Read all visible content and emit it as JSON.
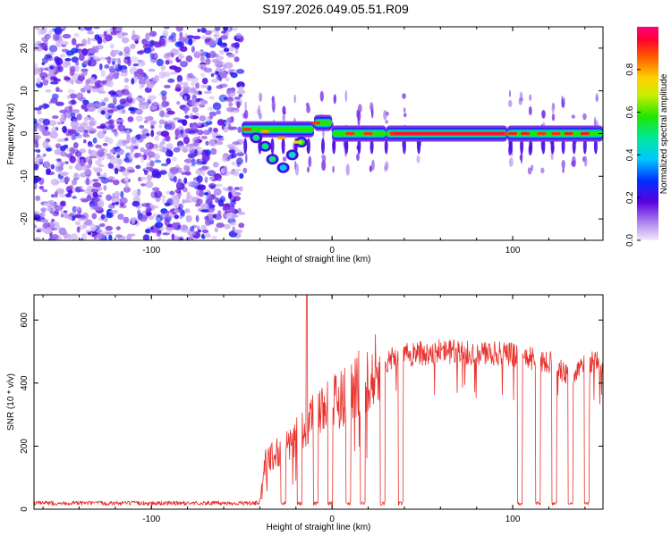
{
  "title": "S197.2026.049.05.51.R09",
  "chart_data": [
    {
      "type": "heatmap",
      "xlabel": "Height of straight line (km)",
      "ylabel": "Frequency (Hz)",
      "xlim": [
        -165,
        150
      ],
      "ylim": [
        -25,
        25
      ],
      "x_ticks": [
        -100,
        0,
        100
      ],
      "y_ticks": [
        -20,
        -10,
        0,
        10,
        20
      ],
      "x_tick_labels": [
        "-100",
        "0",
        "100"
      ],
      "y_tick_labels": [
        "-20",
        "-10",
        "0",
        "10",
        "20"
      ],
      "noise_region_x": [
        -165,
        -50
      ],
      "signal_segments": [
        {
          "x0": -50,
          "x1": -10,
          "freq": 1.0,
          "amp": 0.85
        },
        {
          "x0": -10,
          "x1": 0,
          "freq": 2.5,
          "amp": 0.9
        },
        {
          "x0": 0,
          "x1": 30,
          "freq": 0.0,
          "amp": 0.9
        },
        {
          "x0": 30,
          "x1": 97,
          "freq": 0.0,
          "amp": 0.97
        },
        {
          "x0": 97,
          "x1": 150,
          "freq": 0.0,
          "amp": 0.9
        }
      ],
      "colorbar": {
        "label": "Normalized spectral amplitude",
        "range": [
          0,
          1
        ],
        "ticks": [
          0.0,
          0.2,
          0.4,
          0.6,
          0.8
        ],
        "tick_labels": [
          "0.0",
          "0.2",
          "0.4",
          "0.6",
          "0.8"
        ]
      }
    },
    {
      "type": "line",
      "xlabel": "Height of straight line (km)",
      "ylabel": "SNR (10 * v/v)",
      "xlim": [
        -165,
        150
      ],
      "ylim": [
        0,
        680
      ],
      "x_ticks": [
        -100,
        0,
        100
      ],
      "y_ticks": [
        0,
        200,
        400,
        600
      ],
      "x_tick_labels": [
        "-100",
        "0",
        "100"
      ],
      "y_tick_labels": [
        "0",
        "200",
        "400",
        "600"
      ],
      "series": [
        {
          "name": "SNR",
          "color": "#e8302a",
          "profile": [
            [
              -165,
              20
            ],
            [
              -40,
              20
            ],
            [
              -37,
              150
            ],
            [
              -30,
              180
            ],
            [
              -20,
              230
            ],
            [
              -10,
              300
            ],
            [
              0,
              330
            ],
            [
              10,
              380
            ],
            [
              20,
              420
            ],
            [
              30,
              470
            ],
            [
              40,
              490
            ],
            [
              60,
              500
            ],
            [
              80,
              495
            ],
            [
              100,
              490
            ],
            [
              120,
              470
            ],
            [
              132,
              420
            ],
            [
              140,
              470
            ],
            [
              150,
              460
            ]
          ],
          "dropouts_x": [
            -27,
            -18,
            -9,
            -1,
            9,
            17,
            28,
            38,
            104,
            114,
            123,
            132,
            141
          ],
          "spike": {
            "x": -14,
            "y": 680
          }
        }
      ]
    }
  ]
}
